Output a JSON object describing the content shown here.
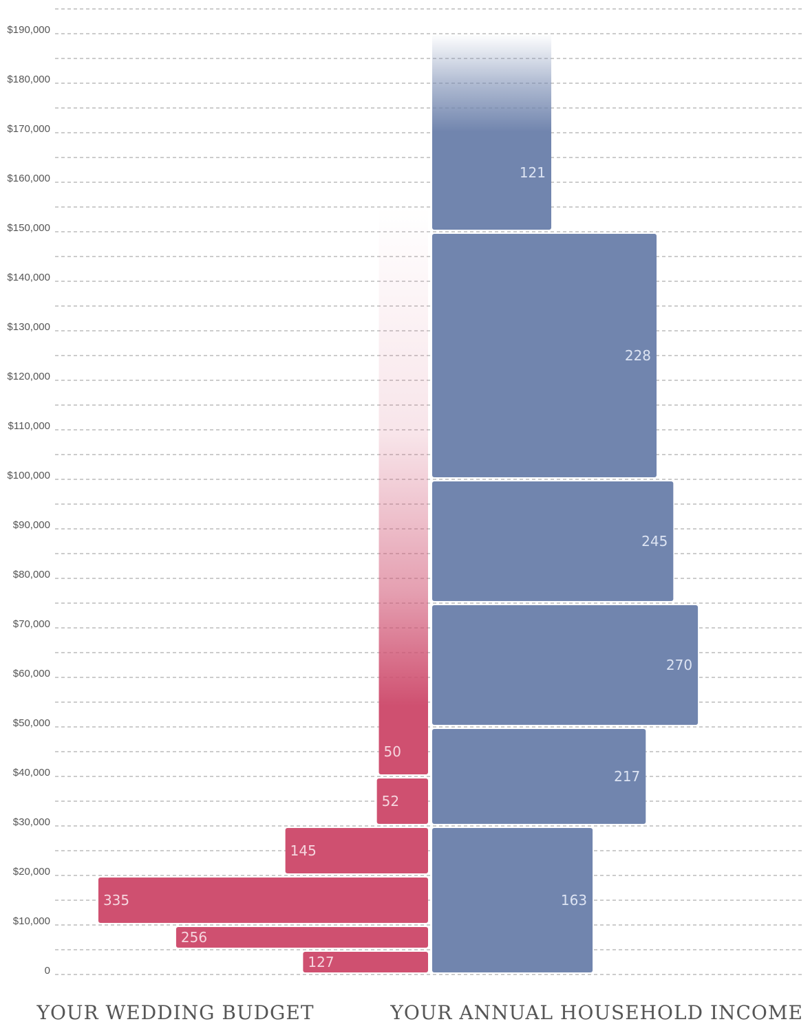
{
  "chart_data": {
    "type": "bar",
    "orientation": "horizontal-back-to-back",
    "ytick_labels": [
      "0",
      "$10,000",
      "$20,000",
      "$30,000",
      "$40,000",
      "$50,000",
      "$60,000",
      "$70,000",
      "$80,000",
      "$90,000",
      "$100,000",
      "$110,000",
      "$120,000",
      "$130,000",
      "$140,000",
      "$150,000",
      "$160,000",
      "$170,000",
      "$180,000",
      "$190,000"
    ],
    "ylim": [
      0,
      190000
    ],
    "grid": true,
    "left": {
      "title": "YOUR WEDDING BUDGET",
      "color": "#cf5070",
      "bars": [
        {
          "from": 0,
          "to": 5000,
          "value": 127,
          "label": "127"
        },
        {
          "from": 5000,
          "to": 10000,
          "value": 256,
          "label": "256"
        },
        {
          "from": 10000,
          "to": 20000,
          "value": 335,
          "label": "335"
        },
        {
          "from": 20000,
          "to": 30000,
          "value": 145,
          "label": "145"
        },
        {
          "from": 30000,
          "to": 40000,
          "value": 52,
          "label": "52"
        },
        {
          "from": 40000,
          "to": 50000,
          "value": 50,
          "label": "50",
          "open_ended": true
        }
      ]
    },
    "right": {
      "title": "YOUR ANNUAL HOUSEHOLD INCOME",
      "color": "#7185ae",
      "bars": [
        {
          "from": 0,
          "to": 30000,
          "value": 163,
          "label": "163"
        },
        {
          "from": 30000,
          "to": 50000,
          "value": 217,
          "label": "217"
        },
        {
          "from": 50000,
          "to": 75000,
          "value": 270,
          "label": "270"
        },
        {
          "from": 75000,
          "to": 100000,
          "value": 245,
          "label": "245"
        },
        {
          "from": 100000,
          "to": 150000,
          "value": 228,
          "label": "228"
        },
        {
          "from": 150000,
          "to": 190000,
          "value": 121,
          "label": "121",
          "open_ended": true
        }
      ]
    }
  }
}
